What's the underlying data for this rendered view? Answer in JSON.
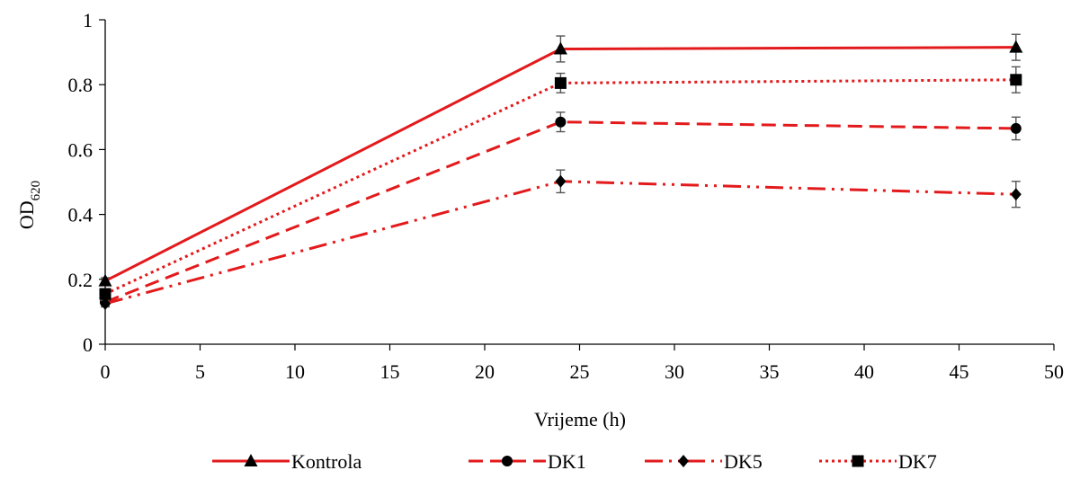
{
  "chart_data": {
    "type": "line",
    "xlabel": "Vrijeme (h)",
    "ylabel": {
      "main": "OD",
      "sub": "620"
    },
    "xlim": [
      0,
      50
    ],
    "ylim": [
      0,
      1
    ],
    "x_ticks": [
      0,
      5,
      10,
      15,
      20,
      25,
      30,
      35,
      40,
      45,
      50
    ],
    "y_ticks": [
      0,
      0.2,
      0.4,
      0.6,
      0.8,
      1
    ],
    "y_tick_labels": [
      "0",
      "0.2",
      "0.4",
      "0.6",
      "0.8",
      "1"
    ],
    "grid": false,
    "legend_position": "bottom",
    "color": "#e31a1c",
    "marker_color": "#000000",
    "errorbar_color": "#555555",
    "series": [
      {
        "name": "Kontrola",
        "marker": "triangle",
        "dash": "solid",
        "x": [
          0,
          24,
          48
        ],
        "y": [
          0.195,
          0.91,
          0.915
        ],
        "err": [
          0.01,
          0.04,
          0.04
        ]
      },
      {
        "name": "DK1",
        "marker": "circle",
        "dash": "dashed",
        "x": [
          0,
          24,
          48
        ],
        "y": [
          0.13,
          0.685,
          0.665
        ],
        "err": [
          0.01,
          0.03,
          0.035
        ]
      },
      {
        "name": "DK5",
        "marker": "diamond",
        "dash": "dash-dot-dot",
        "x": [
          0,
          24,
          48
        ],
        "y": [
          0.125,
          0.502,
          0.462
        ],
        "err": [
          0.01,
          0.035,
          0.04
        ]
      },
      {
        "name": "DK7",
        "marker": "square",
        "dash": "dotted",
        "x": [
          0,
          24,
          48
        ],
        "y": [
          0.155,
          0.805,
          0.815
        ],
        "err": [
          0.01,
          0.03,
          0.04
        ]
      }
    ]
  }
}
